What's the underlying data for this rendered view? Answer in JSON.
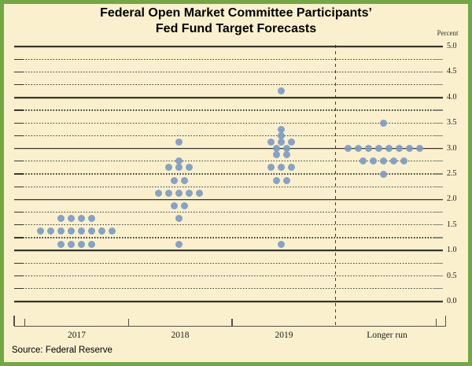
{
  "title": {
    "line1": "Federal Open Market Committee Participants’",
    "line2": "Fed Fund Target Forecasts"
  },
  "axis": {
    "unit_label": "Percent",
    "ytick_labels": [
      "5.0",
      "4.5",
      "4.0",
      "3.5",
      "3.0",
      "2.5",
      "2.0",
      "1.5",
      "1.0",
      "0.5",
      "0.0"
    ]
  },
  "source": "Source: Federal Reserve",
  "colors": {
    "background": "#FAF0CD",
    "border_green": "#73A746",
    "dot_blue": "#7C9BC4",
    "grid_dark": "#3A372C",
    "tick_gray": "#8A857C",
    "axis_line": "#55504A"
  },
  "chart_data": {
    "type": "scatter",
    "subtype": "fomc-dot-plot",
    "title": "Federal Open Market Committee Participants’ Fed Fund Target Forecasts",
    "ylabel": "Percent",
    "ylim": [
      0.0,
      5.0
    ],
    "gridline_interval": 0.25,
    "ytick_label_interval": 0.5,
    "grid": "on",
    "legend": "none",
    "categories": [
      "2017",
      "2018",
      "2019",
      "Longer run"
    ],
    "series": [
      {
        "category": "2017",
        "dots": [
          {
            "rate": 1.625,
            "count": 4
          },
          {
            "rate": 1.375,
            "count": 8
          },
          {
            "rate": 1.125,
            "count": 4
          }
        ]
      },
      {
        "category": "2018",
        "dots": [
          {
            "rate": 3.125,
            "count": 1
          },
          {
            "rate": 2.75,
            "count": 1
          },
          {
            "rate": 2.625,
            "count": 3
          },
          {
            "rate": 2.375,
            "count": 2
          },
          {
            "rate": 2.125,
            "count": 5
          },
          {
            "rate": 1.875,
            "count": 2
          },
          {
            "rate": 1.625,
            "count": 1
          },
          {
            "rate": 1.125,
            "count": 1
          }
        ]
      },
      {
        "category": "2019",
        "dots": [
          {
            "rate": 4.125,
            "count": 1
          },
          {
            "rate": 3.375,
            "count": 1
          },
          {
            "rate": 3.25,
            "count": 1
          },
          {
            "rate": 3.125,
            "count": 3
          },
          {
            "rate": 3.0,
            "count": 2
          },
          {
            "rate": 2.875,
            "count": 2
          },
          {
            "rate": 2.625,
            "count": 3
          },
          {
            "rate": 2.375,
            "count": 2
          },
          {
            "rate": 1.125,
            "count": 1
          }
        ]
      },
      {
        "category": "Longer run",
        "dots": [
          {
            "rate": 3.5,
            "count": 1
          },
          {
            "rate": 3.0,
            "count": 8
          },
          {
            "rate": 2.75,
            "count": 5
          },
          {
            "rate": 2.5,
            "count": 1
          }
        ]
      }
    ]
  }
}
